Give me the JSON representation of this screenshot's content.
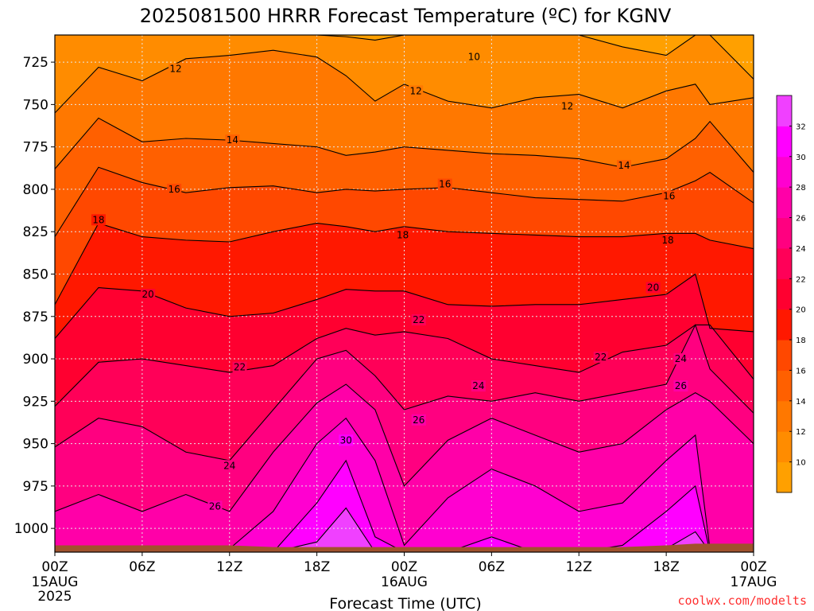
{
  "chart_data": {
    "type": "heatmap",
    "title": "2025081500 HRRR Forecast Temperature (ºC) for KGNV",
    "xlabel": "Forecast Time (UTC)",
    "ylabel": "",
    "credit": "coolwx.com/modelts",
    "x_ticks": [
      {
        "hour": 0,
        "label": "00Z",
        "sub1": "15AUG",
        "sub2": "2025"
      },
      {
        "hour": 6,
        "label": "06Z",
        "sub1": "",
        "sub2": ""
      },
      {
        "hour": 12,
        "label": "12Z",
        "sub1": "",
        "sub2": ""
      },
      {
        "hour": 18,
        "label": "18Z",
        "sub1": "",
        "sub2": ""
      },
      {
        "hour": 24,
        "label": "00Z",
        "sub1": "16AUG",
        "sub2": ""
      },
      {
        "hour": 30,
        "label": "06Z",
        "sub1": "",
        "sub2": ""
      },
      {
        "hour": 36,
        "label": "12Z",
        "sub1": "",
        "sub2": ""
      },
      {
        "hour": 42,
        "label": "18Z",
        "sub1": "",
        "sub2": ""
      },
      {
        "hour": 48,
        "label": "00Z",
        "sub1": "17AUG",
        "sub2": ""
      }
    ],
    "xlim": [
      0,
      48
    ],
    "y_ticks": [
      725,
      750,
      775,
      800,
      825,
      850,
      875,
      900,
      925,
      950,
      975,
      1000
    ],
    "ylim": [
      1014,
      709
    ],
    "grid": true,
    "colorbar": {
      "levels": [
        8,
        10,
        12,
        14,
        16,
        18,
        20,
        22,
        24,
        26,
        28,
        30,
        32,
        34
      ],
      "labels": [
        10,
        12,
        14,
        16,
        18,
        20,
        22,
        24,
        26,
        28,
        30,
        32
      ],
      "colors": [
        "#ffa000",
        "#ff8c00",
        "#ff7800",
        "#ff6000",
        "#ff4800",
        "#ff1800",
        "#ff0030",
        "#ff0058",
        "#ff0080",
        "#ff00a8",
        "#ff00d0",
        "#ff00ff",
        "#f040ff"
      ]
    },
    "x": [
      0,
      3,
      6,
      9,
      12,
      15,
      18,
      20,
      22,
      24,
      27,
      30,
      33,
      36,
      39,
      42,
      44,
      45,
      48
    ],
    "isotherms": [
      {
        "level": 10,
        "p": [
          706,
          706,
          706,
          706,
          706,
          706,
          706,
          710,
          712,
          708,
          706,
          706,
          706,
          706,
          716,
          721,
          706,
          706,
          735
        ]
      },
      {
        "level": 12,
        "p": [
          755,
          728,
          736,
          723,
          721,
          718,
          722,
          733,
          748,
          738,
          748,
          752,
          746,
          744,
          752,
          742,
          738,
          750,
          746
        ]
      },
      {
        "level": 14,
        "p": [
          788,
          758,
          772,
          770,
          771,
          773,
          775,
          780,
          778,
          775,
          777,
          779,
          780,
          782,
          787,
          782,
          770,
          760,
          790
        ]
      },
      {
        "level": 16,
        "p": [
          828,
          787,
          796,
          802,
          799,
          798,
          802,
          800,
          801,
          800,
          799,
          802,
          805,
          806,
          807,
          802,
          795,
          790,
          808
        ]
      },
      {
        "level": 18,
        "p": [
          868,
          820,
          828,
          830,
          831,
          825,
          820,
          822,
          825,
          822,
          825,
          826,
          827,
          828,
          828,
          826,
          826,
          830,
          835
        ]
      },
      {
        "level": 20,
        "p": [
          888,
          858,
          860,
          870,
          875,
          873,
          865,
          859,
          860,
          860,
          868,
          869,
          868,
          868,
          865,
          862,
          850,
          882,
          884
        ]
      },
      {
        "level": 22,
        "p": [
          928,
          902,
          900,
          904,
          908,
          904,
          888,
          882,
          886,
          884,
          888,
          900,
          904,
          908,
          896,
          892,
          880,
          880,
          912
        ]
      },
      {
        "level": 24,
        "p": [
          952,
          935,
          940,
          955,
          960,
          930,
          900,
          895,
          910,
          930,
          922,
          925,
          920,
          925,
          920,
          915,
          880,
          906,
          932
        ]
      },
      {
        "level": 26,
        "p": [
          990,
          980,
          990,
          980,
          990,
          955,
          926,
          915,
          930,
          975,
          948,
          935,
          945,
          955,
          950,
          930,
          920,
          925,
          950
        ]
      },
      {
        "level": 28,
        "p": [
          1020,
          1012,
          1012,
          1012,
          1012,
          990,
          950,
          935,
          960,
          1010,
          982,
          965,
          975,
          990,
          985,
          960,
          945,
          1012,
          1012
        ]
      },
      {
        "level": 30,
        "p": [
          1020,
          1020,
          1020,
          1020,
          1020,
          1020,
          985,
          960,
          1005,
          1020,
          1020,
          1005,
          1020,
          1020,
          1010,
          990,
          975,
          1020,
          1020
        ]
      },
      {
        "level": 32,
        "p": [
          1020,
          1020,
          1020,
          1020,
          1020,
          1020,
          1008,
          988,
          1020,
          1020,
          1020,
          1020,
          1020,
          1020,
          1020,
          1012,
          1002,
          1020,
          1020
        ]
      }
    ],
    "contour_labels": [
      {
        "text": "10",
        "x": 28.8,
        "p": 722
      },
      {
        "text": "12",
        "x": 8.3,
        "p": 729
      },
      {
        "text": "12",
        "x": 24.8,
        "p": 742
      },
      {
        "text": "12",
        "x": 35.2,
        "p": 751
      },
      {
        "text": "14",
        "x": 12.2,
        "p": 771
      },
      {
        "text": "14",
        "x": 39.1,
        "p": 786
      },
      {
        "text": "16",
        "x": 8.2,
        "p": 800
      },
      {
        "text": "16",
        "x": 26.8,
        "p": 797
      },
      {
        "text": "16",
        "x": 42.2,
        "p": 804
      },
      {
        "text": "18",
        "x": 3.0,
        "p": 818
      },
      {
        "text": "18",
        "x": 23.9,
        "p": 827
      },
      {
        "text": "18",
        "x": 42.1,
        "p": 830
      },
      {
        "text": "20",
        "x": 6.4,
        "p": 862
      },
      {
        "text": "20",
        "x": 41.1,
        "p": 858
      },
      {
        "text": "22",
        "x": 12.7,
        "p": 905
      },
      {
        "text": "22",
        "x": 25.0,
        "p": 877
      },
      {
        "text": "22",
        "x": 37.5,
        "p": 899
      },
      {
        "text": "24",
        "x": 12.0,
        "p": 963
      },
      {
        "text": "24",
        "x": 29.1,
        "p": 916
      },
      {
        "text": "24",
        "x": 43.0,
        "p": 900
      },
      {
        "text": "26",
        "x": 11.0,
        "p": 987
      },
      {
        "text": "26",
        "x": 25.0,
        "p": 936
      },
      {
        "text": "26",
        "x": 43.0,
        "p": 916
      },
      {
        "text": "30",
        "x": 20.0,
        "p": 948
      }
    ],
    "surface_p": [
      1010,
      1010,
      1010,
      1010,
      1010,
      1011,
      1011,
      1011,
      1011,
      1011,
      1011,
      1011,
      1011,
      1011,
      1011,
      1010,
      1009,
      1009,
      1009
    ]
  }
}
